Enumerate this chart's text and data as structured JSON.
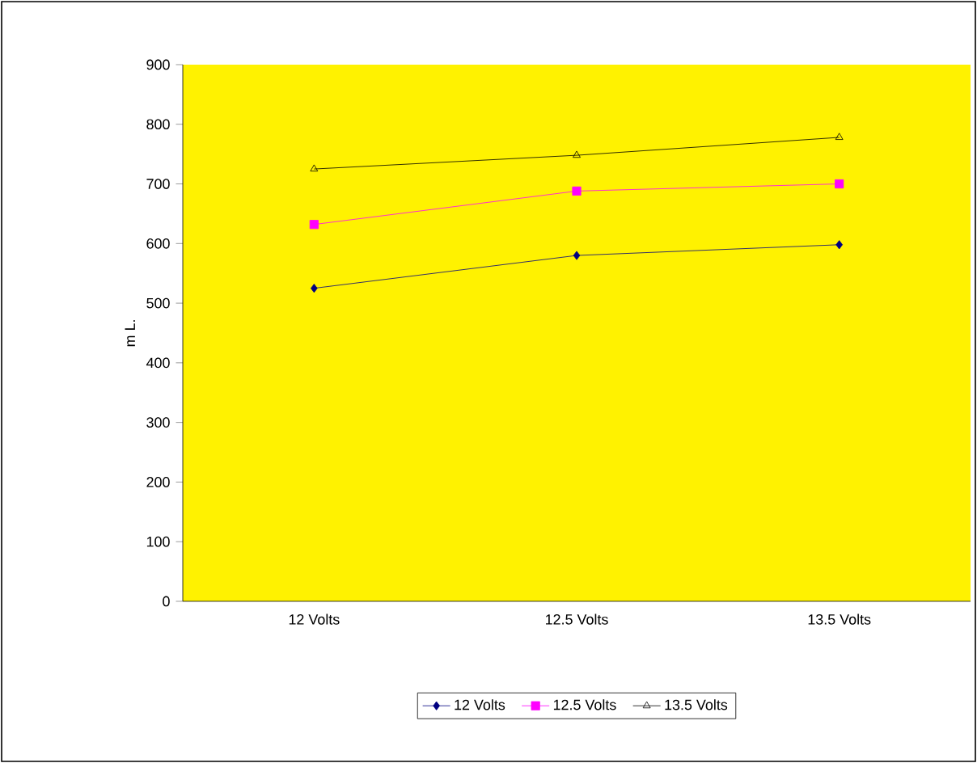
{
  "chart_data": {
    "type": "line",
    "ylabel": "m L.",
    "categories": [
      "12 Volts",
      "12.5 Volts",
      "13.5 Volts"
    ],
    "series": [
      {
        "name": "12 Volts",
        "color": "#000080",
        "marker": "diamond",
        "values": [
          525,
          580,
          598
        ]
      },
      {
        "name": "12.5 Volts",
        "color": "#ff00ff",
        "marker": "square",
        "values": [
          632,
          688,
          700
        ]
      },
      {
        "name": "13.5 Volts",
        "color": "#000000",
        "marker": "triangle",
        "values": [
          725,
          748,
          778
        ]
      }
    ],
    "ylim": [
      0,
      900
    ],
    "yticks": [
      0,
      100,
      200,
      300,
      400,
      500,
      600,
      700,
      800,
      900
    ],
    "grid": false,
    "legend": "bottom",
    "line_style": "solid"
  }
}
